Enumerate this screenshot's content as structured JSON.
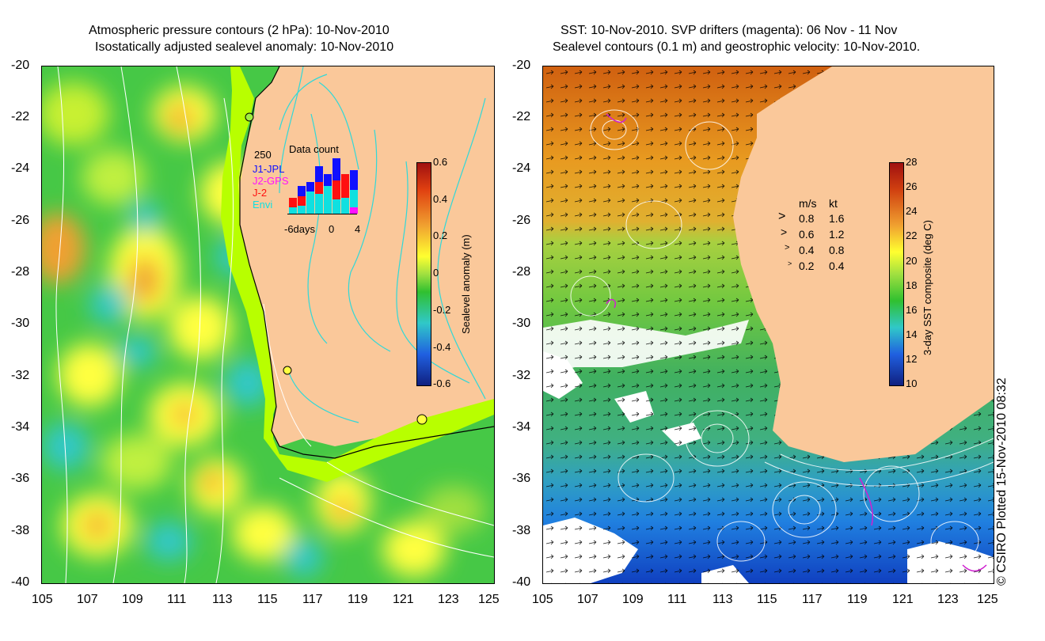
{
  "left_panel": {
    "title_line1": "Atmospheric pressure contours (2 hPa): 10-Nov-2010",
    "title_line2": "Isostatically adjusted sealevel anomaly: 10-Nov-2010",
    "lat_ticks": [
      "-20",
      "-22",
      "-24",
      "-26",
      "-28",
      "-30",
      "-32",
      "-34",
      "-36",
      "-38",
      "-40"
    ],
    "lon_ticks": [
      "105",
      "107",
      "109",
      "111",
      "113",
      "115",
      "117",
      "119",
      "121",
      "123",
      "125"
    ],
    "colorbar": {
      "label": "Sealevel anomaly (m)",
      "ticks": [
        "0.6",
        "0.4",
        "0.2",
        "0",
        "-0.2",
        "-0.4",
        "-0.6"
      ]
    },
    "inset": {
      "title": "Data count",
      "max_label": "250",
      "x_left": "-6days",
      "x_mid": "0",
      "x_right": "4",
      "legend": [
        {
          "name": "J1-JPL",
          "color": "#1010ff"
        },
        {
          "name": "J2-GPS",
          "color": "#ff10ff"
        },
        {
          "name": "J-2",
          "color": "#ff1010"
        },
        {
          "name": "Envi",
          "color": "#10e0e0"
        }
      ]
    }
  },
  "right_panel": {
    "title_line1": "SST: 10-Nov-2010. SVP drifters (magenta): 06 Nov - 11 Nov",
    "title_line2": "Sealevel contours (0.1 m) and geostrophic velocity: 10-Nov-2010.",
    "lat_ticks": [
      "-20",
      "-22",
      "-24",
      "-26",
      "-28",
      "-30",
      "-32",
      "-34",
      "-36",
      "-38",
      "-40"
    ],
    "lon_ticks": [
      "105",
      "107",
      "109",
      "111",
      "113",
      "115",
      "117",
      "119",
      "121",
      "123",
      "125"
    ],
    "colorbar": {
      "label": "3-day SST composite (deg C)",
      "ticks": [
        "28",
        "26",
        "24",
        "22",
        "20",
        "18",
        "16",
        "14",
        "12",
        "10"
      ]
    },
    "velocity_legend": {
      "header_ms": "m/s",
      "header_kt": "kt",
      "rows": [
        {
          "ms": "0.8",
          "kt": "1.6"
        },
        {
          "ms": "0.6",
          "kt": "1.2"
        },
        {
          "ms": "0.4",
          "kt": "0.8"
        },
        {
          "ms": "0.2",
          "kt": "0.4"
        }
      ]
    }
  },
  "credit": "© CSIRO Plotted 15-Nov-2010 08:32",
  "colors": {
    "land": "#fac89a",
    "coast_shelf": "#b8ff00",
    "ssh_green": "#3cc83c",
    "ssh_yellow": "#ffff30",
    "ssh_orange": "#f0a030",
    "ssh_cyan": "#30c8c8",
    "sst_orange": "#e89a20",
    "sst_green": "#50c050",
    "sst_blue": "#2090e0",
    "sst_darkblue": "#1040c0"
  }
}
